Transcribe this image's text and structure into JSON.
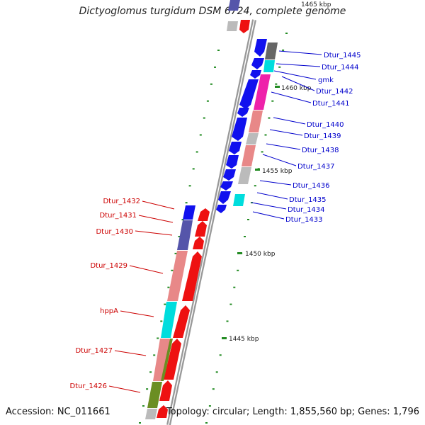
{
  "title": "Dictyoglomus turgidum DSM 6724, complete genome",
  "footer": {
    "accession": "Accession: NC_011661",
    "summary": "Topology: circular; Length: 1,855,560 bp; Genes: 1,796"
  },
  "scale_labels": [
    "1465 kbp",
    "1460 kbp",
    "1455 kbp",
    "1450 kbp",
    "1445 kbp"
  ],
  "genes_forward_strand": [
    "Dtur_1445",
    "Dtur_1444",
    "gmk",
    "Dtur_1442",
    "Dtur_1441",
    "Dtur_1440",
    "Dtur_1439",
    "Dtur_1438",
    "Dtur_1437",
    "Dtur_1436",
    "Dtur_1435",
    "Dtur_1434",
    "Dtur_1433"
  ],
  "genes_reverse_strand": [
    "Dtur_1432",
    "Dtur_1431",
    "Dtur_1430",
    "Dtur_1429",
    "hppA",
    "Dtur_1427",
    "Dtur_1426"
  ],
  "colors": {
    "backbone": "#999999",
    "blue_arrow": "#1111ee",
    "red_arrow": "#ee1111",
    "cyan": "#00dddd",
    "magenta": "#ee22aa",
    "pink": "#e88888",
    "grey": "#bbbbbb",
    "dark_grey": "#666666",
    "slate": "#5555aa",
    "olive": "#6b8e23",
    "tick_green": "#228b22"
  }
}
